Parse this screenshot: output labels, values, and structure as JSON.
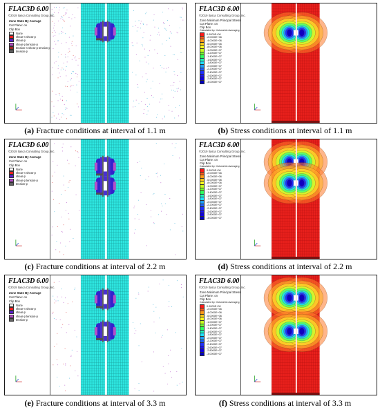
{
  "fracture_panels": [
    {
      "id": "a",
      "title": "FLAC3D 6.00",
      "subtitle": "©2019 Itasca Consulting Group, Inc.",
      "legend_title": "Zone State By Average",
      "cut_plane": "Cut Plane: on",
      "clip_box": "Clip Box",
      "items": [
        {
          "label": "None",
          "color": "#ffffff"
        },
        {
          "label": "shear-n shear-p",
          "color": "#ff2020"
        },
        {
          "label": "shear-p",
          "color": "#5a1fd0"
        },
        {
          "label": "shear-p tension-p",
          "color": "#b44fc8"
        },
        {
          "label": "tension-n shear-p tension-p",
          "color": "#a02828"
        },
        {
          "label": "tension-p",
          "color": "#606060"
        }
      ],
      "caption_letter": "(a)",
      "caption_text": "Fracture conditions at interval of 1.1 m"
    },
    {
      "id": "c",
      "title": "FLAC3D 6.00",
      "subtitle": "©2019 Itasca Consulting Group, Inc.",
      "legend_title": "Zone State By Average",
      "cut_plane": "Cut Plane: on",
      "clip_box": "Clip Box",
      "items": [
        {
          "label": "None",
          "color": "#ffffff"
        },
        {
          "label": "shear-n shear-p",
          "color": "#ff2020"
        },
        {
          "label": "shear-p",
          "color": "#5a1fd0"
        },
        {
          "label": "shear-p tension-p",
          "color": "#b44fc8"
        },
        {
          "label": "tension-p",
          "color": "#606060"
        }
      ],
      "caption_letter": "(c)",
      "caption_text": "Fracture conditions at interval of 2.2 m"
    },
    {
      "id": "e",
      "title": "FLAC3D 6.00",
      "subtitle": "©2019 Itasca Consulting Group, Inc.",
      "legend_title": "Zone State By Average",
      "cut_plane": "Cut Plane: on",
      "clip_box": "Clip Box",
      "items": [
        {
          "label": "None",
          "color": "#ffffff"
        },
        {
          "label": "shear-n shear-p",
          "color": "#ff2020"
        },
        {
          "label": "shear-p",
          "color": "#5a1fd0"
        },
        {
          "label": "shear-p tension-p",
          "color": "#b44fc8"
        },
        {
          "label": "tension-p",
          "color": "#606060"
        }
      ],
      "caption_letter": "(e)",
      "caption_text": "Fracture conditions at interval of 3.3 m"
    }
  ],
  "stress_panels": [
    {
      "id": "b",
      "title": "FLAC3D 6.00",
      "subtitle": "©2019 Itasca Consulting Group, Inc.",
      "legend_title": "Zone Minimum Principal Stress",
      "cut_plane": "Cut Plane: on",
      "clip_box": "Clip Box",
      "calc": "Calculated by: Volumetric Averaging",
      "values": [
        "0.0000E+00",
        "-2.0000E+06",
        "-4.0000E+06",
        "-6.0000E+06",
        "-8.0000E+06",
        "-1.0000E+07",
        "-1.2000E+07",
        "-1.4000E+07",
        "-1.6000E+07",
        "-1.8000E+07",
        "-2.0000E+07",
        "-2.2000E+07",
        "-2.4000E+07",
        "-2.6000E+07",
        "-2.8000E+07",
        "-3.0000E+07"
      ],
      "caption_letter": "(b)",
      "caption_text": "Stress conditions at interval of 1.1 m"
    },
    {
      "id": "d",
      "title": "FLAC3D 6.00",
      "subtitle": "©2019 Itasca Consulting Group, Inc.",
      "legend_title": "Zone Minimum Principal Stress",
      "cut_plane": "Cut Plane: on",
      "clip_box": "Clip Box",
      "calc": "Calculated by: Volumetric Averaging",
      "values": [
        "0.0000E+00",
        "-2.0000E+06",
        "-4.0000E+06",
        "-6.0000E+06",
        "-8.0000E+06",
        "-1.0000E+07",
        "-1.2000E+07",
        "-1.4000E+07",
        "-1.6000E+07",
        "-1.8000E+07",
        "-2.0000E+07",
        "-2.2000E+07",
        "-2.4000E+07",
        "-2.6000E+07",
        "-2.8000E+07",
        "-3.0000E+07"
      ],
      "caption_letter": "(d)",
      "caption_text": "Stress conditions at interval of 2.2 m"
    },
    {
      "id": "f",
      "title": "FLAC3D 6.00",
      "subtitle": "©2019 Itasca Consulting Group, Inc.",
      "legend_title": "Zone Minimum Principal Stress",
      "cut_plane": "Cut Plane: on",
      "clip_box": "Clip Box",
      "calc": "Calculated by: Volumetric Averaging",
      "values": [
        "0.0000E+00",
        "-2.0000E+06",
        "-4.0000E+06",
        "-6.0000E+06",
        "-8.0000E+06",
        "-1.0000E+07",
        "-1.2000E+07",
        "-1.4000E+07",
        "-1.6000E+07",
        "-1.8000E+07",
        "-2.0000E+07",
        "-2.2000E+07",
        "-2.4000E+07",
        "-2.6000E+07",
        "-2.8000E+07",
        "-3.0000E+07"
      ],
      "caption_letter": "(f)",
      "caption_text": "Stress conditions at interval of 3.3 m"
    }
  ],
  "colors": {
    "mesh_cyan": "#2ee6e0",
    "stress_red": "#e8201c",
    "plastic_blue": "#3322cc",
    "scale": [
      "#ff1a1a",
      "#ff5a1a",
      "#ff9a1a",
      "#ffcc1a",
      "#ffff20",
      "#c8ff20",
      "#7aff30",
      "#30ff60",
      "#20ffc0",
      "#20e0ff",
      "#20a0ff",
      "#2060ff",
      "#2030ff",
      "#1a10ff",
      "#1000e0",
      "#0000c0"
    ]
  }
}
